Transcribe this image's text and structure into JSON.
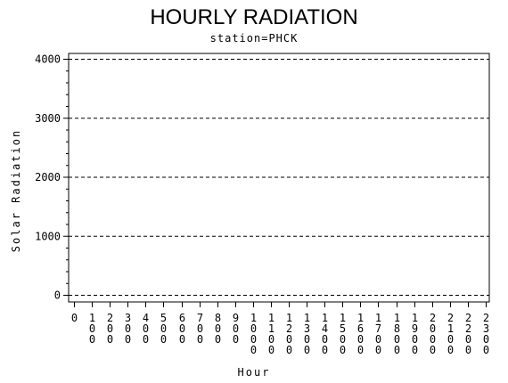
{
  "chart_data": {
    "type": "line",
    "title": "HOURLY RADIATION",
    "subtitle": "station=PHCK",
    "xlabel": "Hour",
    "ylabel": "Solar Radiation",
    "x_ticks": [
      "0",
      "100",
      "200",
      "300",
      "400",
      "500",
      "600",
      "700",
      "800",
      "900",
      "1000",
      "1100",
      "1200",
      "1300",
      "1400",
      "1500",
      "1600",
      "1700",
      "1800",
      "1900",
      "2000",
      "2100",
      "2200",
      "2300"
    ],
    "y_ticks": [
      0,
      1000,
      2000,
      3000,
      4000
    ],
    "ylim": [
      0,
      4000
    ],
    "grid": "horizontal dashed",
    "series": []
  }
}
